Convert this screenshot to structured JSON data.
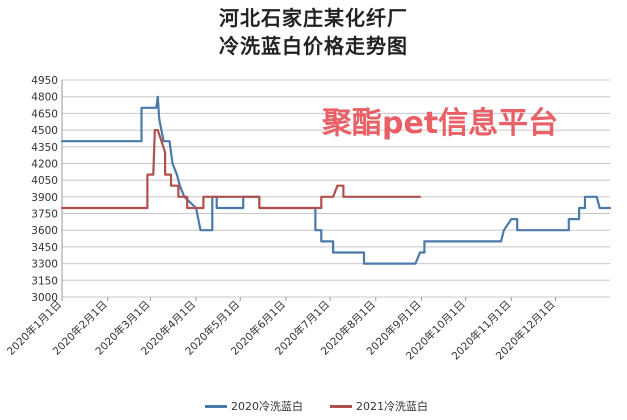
{
  "chart_data": {
    "type": "line",
    "title": "河北石家庄某化纤厂",
    "subtitle": "冷洗蓝白价格走势图",
    "xlabel": "",
    "ylabel": "",
    "ylim": [
      3000,
      4950
    ],
    "yticks": [
      3000,
      3150,
      3300,
      3450,
      3600,
      3750,
      3900,
      4050,
      4200,
      4350,
      4500,
      4650,
      4800,
      4950
    ],
    "xlim": [
      "2020-01-01",
      "2021-01-07"
    ],
    "xticks": [
      {
        "date": "2020-01-01",
        "label": "2020年1月1日"
      },
      {
        "date": "2020-02-01",
        "label": "2020年2月1日"
      },
      {
        "date": "2020-03-01",
        "label": "2020年3月1日"
      },
      {
        "date": "2020-04-01",
        "label": "2020年4月1日"
      },
      {
        "date": "2020-05-01",
        "label": "2020年5月1日"
      },
      {
        "date": "2020-06-01",
        "label": "2020年6月1日"
      },
      {
        "date": "2020-07-01",
        "label": "2020年7月1日"
      },
      {
        "date": "2020-08-01",
        "label": "2020年8月1日"
      },
      {
        "date": "2020-09-01",
        "label": "2020年9月1日"
      },
      {
        "date": "2020-10-01",
        "label": "2020年10月1日"
      },
      {
        "date": "2020-11-01",
        "label": "2020年11月1日"
      },
      {
        "date": "2020-12-01",
        "label": "2020年12月1日"
      }
    ],
    "grid": "horizontal",
    "legend": "bottom",
    "watermark": "聚酯pet信息平台",
    "series": [
      {
        "name": "2020冷洗蓝白",
        "color": "#4a7aa9",
        "points": [
          [
            "2020-01-01",
            4400
          ],
          [
            "2020-02-24",
            4400
          ],
          [
            "2020-02-24",
            4700
          ],
          [
            "2020-03-05",
            4700
          ],
          [
            "2020-03-06",
            4800
          ],
          [
            "2020-03-07",
            4600
          ],
          [
            "2020-03-10",
            4400
          ],
          [
            "2020-03-14",
            4400
          ],
          [
            "2020-03-16",
            4200
          ],
          [
            "2020-03-19",
            4100
          ],
          [
            "2020-03-21",
            4000
          ],
          [
            "2020-03-24",
            3900
          ],
          [
            "2020-04-01",
            3800
          ],
          [
            "2020-04-04",
            3600
          ],
          [
            "2020-04-12",
            3600
          ],
          [
            "2020-04-12",
            3900
          ],
          [
            "2020-04-15",
            3900
          ],
          [
            "2020-04-15",
            3800
          ],
          [
            "2020-05-03",
            3800
          ],
          [
            "2020-05-03",
            3900
          ],
          [
            "2020-05-14",
            3900
          ],
          [
            "2020-05-14",
            3800
          ],
          [
            "2020-06-11",
            3800
          ],
          [
            "2020-06-21",
            3800
          ],
          [
            "2020-06-21",
            3600
          ],
          [
            "2020-06-25",
            3600
          ],
          [
            "2020-06-25",
            3500
          ],
          [
            "2020-07-03",
            3500
          ],
          [
            "2020-07-03",
            3400
          ],
          [
            "2020-07-24",
            3400
          ],
          [
            "2020-07-24",
            3300
          ],
          [
            "2020-08-28",
            3300
          ],
          [
            "2020-08-31",
            3400
          ],
          [
            "2020-09-03",
            3400
          ],
          [
            "2020-09-03",
            3500
          ],
          [
            "2020-10-25",
            3500
          ],
          [
            "2020-10-27",
            3600
          ],
          [
            "2020-11-01",
            3700
          ],
          [
            "2020-11-05",
            3700
          ],
          [
            "2020-11-05",
            3600
          ],
          [
            "2020-12-10",
            3600
          ],
          [
            "2020-12-10",
            3700
          ],
          [
            "2020-12-17",
            3700
          ],
          [
            "2020-12-17",
            3800
          ],
          [
            "2020-12-21",
            3800
          ],
          [
            "2020-12-21",
            3900
          ],
          [
            "2020-12-29",
            3900
          ],
          [
            "2020-12-31",
            3800
          ],
          [
            "2021-01-07",
            3800
          ]
        ]
      },
      {
        "name": "2021冷洗蓝白",
        "color": "#b0504c",
        "points": [
          [
            "2020-01-01",
            3800
          ],
          [
            "2020-02-28",
            3800
          ],
          [
            "2020-02-28",
            4100
          ],
          [
            "2020-03-03",
            4100
          ],
          [
            "2020-03-04",
            4500
          ],
          [
            "2020-03-06",
            4500
          ],
          [
            "2020-03-11",
            4300
          ],
          [
            "2020-03-11",
            4100
          ],
          [
            "2020-03-15",
            4100
          ],
          [
            "2020-03-15",
            4000
          ],
          [
            "2020-03-20",
            4000
          ],
          [
            "2020-03-20",
            3900
          ],
          [
            "2020-03-26",
            3900
          ],
          [
            "2020-03-26",
            3800
          ],
          [
            "2020-04-06",
            3800
          ],
          [
            "2020-04-06",
            3900
          ],
          [
            "2020-05-14",
            3900
          ],
          [
            "2020-05-14",
            3800
          ],
          [
            "2020-06-25",
            3800
          ],
          [
            "2020-06-25",
            3900
          ],
          [
            "2020-07-03",
            3900
          ],
          [
            "2020-07-06",
            4000
          ],
          [
            "2020-07-10",
            4000
          ],
          [
            "2020-07-10",
            3900
          ],
          [
            "2020-08-31",
            3900
          ]
        ]
      }
    ]
  }
}
